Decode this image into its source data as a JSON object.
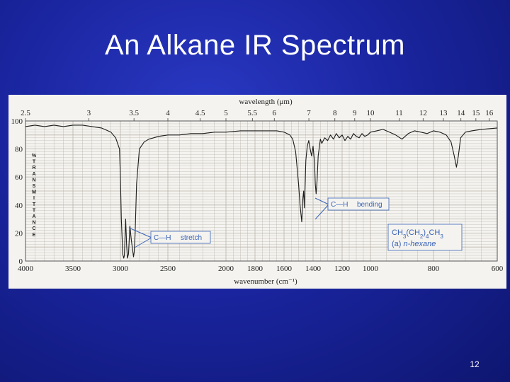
{
  "slide": {
    "title": "An Alkane IR Spectrum",
    "page_number": "12"
  },
  "colors": {
    "background": "#1a25a0",
    "grid": "#b7b3a9",
    "trace": "#1c1c1c",
    "annotation": "#3a63b8"
  },
  "chart_data": {
    "type": "line",
    "xlabel": "wavenumber (cm⁻¹)",
    "x2label": "wavelength (μm)",
    "ylabel": "% TRANSMITTANCE",
    "ylabel_letters": [
      "%",
      "T",
      "R",
      "A",
      "N",
      "S",
      "M",
      "I",
      "T",
      "T",
      "A",
      "N",
      "C",
      "E"
    ],
    "xlim": [
      4000,
      600
    ],
    "ylim": [
      0,
      100
    ],
    "grid": true,
    "x_ticks": [
      {
        "label": "4000",
        "value": 4000
      },
      {
        "label": "3500",
        "value": 3500
      },
      {
        "label": "3000",
        "value": 3000
      },
      {
        "label": "2500",
        "value": 2500
      },
      {
        "label": "2000",
        "value": 2000
      },
      {
        "label": "1800",
        "value": 1800
      },
      {
        "label": "1600",
        "value": 1600
      },
      {
        "label": "1400",
        "value": 1400
      },
      {
        "label": "1200",
        "value": 1200
      },
      {
        "label": "1000",
        "value": 1000
      },
      {
        "label": "800",
        "value": 800
      },
      {
        "label": "600",
        "value": 600
      }
    ],
    "y_ticks": [
      "0",
      "20",
      "40",
      "60",
      "80",
      "100"
    ],
    "top_ticks": [
      {
        "label": "2.5",
        "wn": 4000
      },
      {
        "label": "3",
        "wn": 3333
      },
      {
        "label": "3.5",
        "wn": 2857
      },
      {
        "label": "4",
        "wn": 2500
      },
      {
        "label": "4.5",
        "wn": 2222
      },
      {
        "label": "5",
        "wn": 2000
      },
      {
        "label": "5.5",
        "wn": 1818
      },
      {
        "label": "6",
        "wn": 1667
      },
      {
        "label": "7",
        "wn": 1429
      },
      {
        "label": "8",
        "wn": 1250
      },
      {
        "label": "9",
        "wn": 1111
      },
      {
        "label": "10",
        "wn": 1000
      },
      {
        "label": "11",
        "wn": 909
      },
      {
        "label": "12",
        "wn": 833
      },
      {
        "label": "13",
        "wn": 769
      },
      {
        "label": "14",
        "wn": 714
      },
      {
        "label": "15",
        "wn": 667
      },
      {
        "label": "16",
        "wn": 625
      }
    ],
    "series": [
      {
        "name": "",
        "x": [
          4000,
          3900,
          3800,
          3700,
          3600,
          3500,
          3400,
          3300,
          3200,
          3100,
          3050,
          3010,
          3000,
          2990,
          2975,
          2965,
          2958,
          2945,
          2935,
          2926,
          2915,
          2900,
          2885,
          2872,
          2862,
          2855,
          2845,
          2830,
          2800,
          2750,
          2700,
          2650,
          2600,
          2500,
          2400,
          2300,
          2200,
          2100,
          2000,
          1900,
          1800,
          1700,
          1650,
          1600,
          1580,
          1560,
          1540,
          1520,
          1500,
          1490,
          1478,
          1470,
          1465,
          1460,
          1450,
          1440,
          1430,
          1420,
          1410,
          1400,
          1390,
          1385,
          1379,
          1372,
          1365,
          1350,
          1340,
          1320,
          1300,
          1280,
          1260,
          1240,
          1220,
          1200,
          1180,
          1160,
          1140,
          1120,
          1100,
          1080,
          1060,
          1040,
          1020,
          1000,
          980,
          960,
          940,
          920,
          900,
          880,
          860,
          840,
          820,
          800,
          780,
          760,
          745,
          735,
          728,
          722,
          715,
          700,
          680,
          650,
          600
        ],
        "y": [
          96,
          97,
          96,
          97,
          96,
          97,
          97,
          96,
          95,
          92,
          88,
          80,
          60,
          30,
          5,
          2,
          4,
          30,
          12,
          2,
          5,
          25,
          15,
          8,
          3,
          6,
          20,
          55,
          80,
          85,
          87,
          88,
          89,
          90,
          90,
          91,
          91,
          92,
          92,
          93,
          93,
          93,
          93,
          92,
          91,
          90,
          87,
          78,
          55,
          40,
          28,
          45,
          50,
          38,
          72,
          82,
          86,
          80,
          75,
          82,
          70,
          55,
          48,
          58,
          75,
          87,
          84,
          88,
          86,
          90,
          87,
          91,
          88,
          90,
          86,
          89,
          87,
          91,
          89,
          88,
          91,
          89,
          90,
          92,
          93,
          94,
          92,
          90,
          87,
          91,
          93,
          92,
          91,
          93,
          92,
          90,
          85,
          75,
          67,
          75,
          88,
          92,
          93,
          94,
          95
        ]
      }
    ],
    "annotations": [
      {
        "formula": "C—H",
        "text": "bending"
      },
      {
        "formula": "C—H",
        "text": "stretch"
      }
    ],
    "compound": {
      "formula": "CH3(CH2)4CH3",
      "name_prefix": "(a) ",
      "name": "n-hexane"
    }
  }
}
